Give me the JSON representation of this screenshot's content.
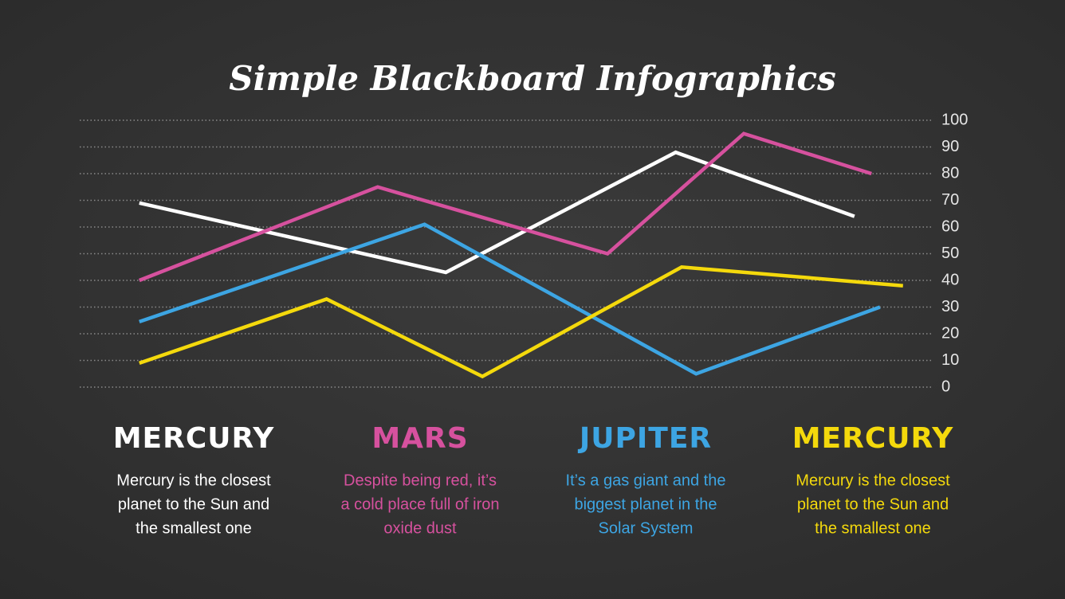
{
  "chart_data": {
    "type": "line",
    "title": "Simple Blackboard Infographics",
    "xlim": [
      0,
      100
    ],
    "ylim": [
      0,
      100
    ],
    "yticks": [
      0,
      10,
      20,
      30,
      40,
      50,
      60,
      70,
      80,
      90,
      100
    ],
    "grid": true,
    "series": [
      {
        "color": "#ffffff",
        "x": [
          7,
          43,
          70,
          91
        ],
        "values": [
          69,
          43,
          88,
          64
        ]
      },
      {
        "color": "#d6519e",
        "x": [
          7,
          35,
          62,
          78,
          93
        ],
        "values": [
          40,
          75,
          50,
          95,
          80
        ]
      },
      {
        "color": "#3da5e3",
        "x": [
          7,
          40.5,
          72.4,
          94
        ],
        "values": [
          24.5,
          61,
          5,
          30
        ]
      },
      {
        "color": "#f4d90c",
        "x": [
          7,
          29,
          47.3,
          70.7,
          96.7
        ],
        "values": [
          9,
          33,
          4,
          45,
          38
        ]
      }
    ],
    "columns": [
      {
        "heading": "MERCURY",
        "color": "#ffffff",
        "lines": [
          "Mercury is the closest",
          "planet to the Sun and",
          "the smallest one"
        ]
      },
      {
        "heading": "MARS",
        "color": "#d6519e",
        "lines": [
          "Despite being red, it’s",
          "a cold place full of iron",
          "oxide dust"
        ]
      },
      {
        "heading": "JUPITER",
        "color": "#3da5e3",
        "lines": [
          "It’s a gas giant and the",
          "biggest planet in the",
          "Solar System"
        ]
      },
      {
        "heading": "MERCURY",
        "color": "#f4d90c",
        "lines": [
          "Mercury is the closest",
          "planet to the Sun and",
          "the smallest one"
        ]
      }
    ]
  }
}
